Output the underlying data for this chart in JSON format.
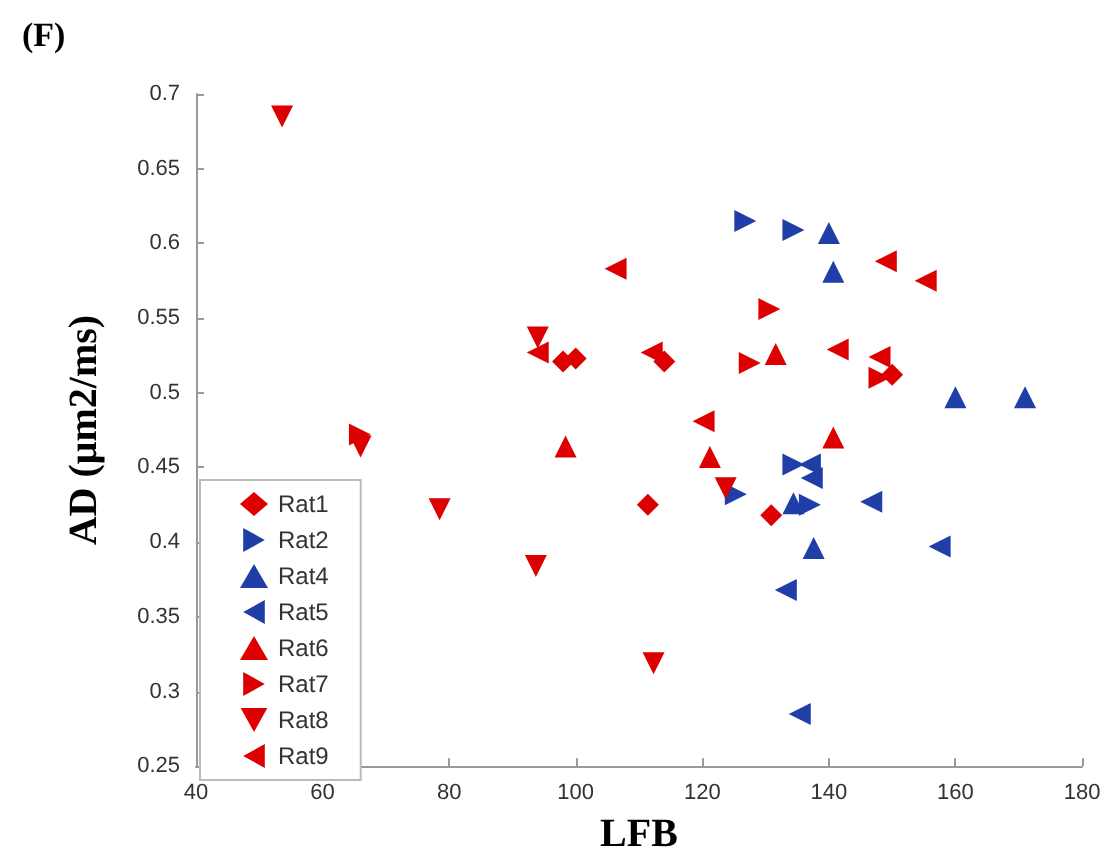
{
  "chart_data": {
    "type": "scatter",
    "title": "(F)",
    "xlabel": "LFB",
    "ylabel": "AD (μm2/ms)",
    "xlim": [
      40,
      180
    ],
    "xticks": [
      40,
      60,
      80,
      100,
      120,
      140,
      160,
      180
    ],
    "ylim": [
      0.25,
      0.7
    ],
    "yticks": [
      0.25,
      0.3,
      0.35,
      0.4,
      0.45,
      0.5,
      0.55,
      0.6,
      0.65,
      0.7
    ],
    "grid": false,
    "legend": "bottom left",
    "series": [
      {
        "name": "Rat1",
        "color": "#dd0000",
        "marker": "diamond",
        "x": [
          111.4,
          130.9,
          98,
          100,
          114,
          150
        ],
        "values": [
          0.425,
          0.418,
          0.521,
          0.523,
          0.521,
          0.512
        ]
      },
      {
        "name": "Rat2",
        "color": "#1f3ea8",
        "marker": "triangle-right",
        "x": [
          126.8,
          134.4,
          134.4,
          137,
          125.3
        ],
        "values": [
          0.615,
          0.609,
          0.452,
          0.425,
          0.432
        ]
      },
      {
        "name": "Rat4",
        "color": "#1f3ea8",
        "marker": "triangle",
        "x": [
          140,
          140.7,
          160,
          171,
          137.6,
          134.4
        ],
        "values": [
          0.607,
          0.581,
          0.497,
          0.497,
          0.396,
          0.426
        ]
      },
      {
        "name": "Rat5",
        "color": "#1f3ea8",
        "marker": "triangle-left",
        "x": [
          137,
          137.3,
          146.7,
          157.5,
          133.2,
          135.4,
          null
        ],
        "values": [
          0.452,
          0.443,
          0.427,
          0.397,
          0.368,
          0.285,
          null
        ]
      },
      {
        "name": "Rat6",
        "color": "#dd0000",
        "marker": "triangle",
        "x": [
          98.4,
          131.6,
          140.7,
          121.2
        ],
        "values": [
          0.464,
          0.526,
          0.47,
          0.457
        ]
      },
      {
        "name": "Rat7",
        "color": "#dd0000",
        "marker": "triangle-right",
        "x": [
          65.9,
          127.5,
          130.6,
          148
        ],
        "values": [
          0.472,
          0.52,
          0.556,
          0.51
        ]
      },
      {
        "name": "Rat8",
        "color": "#dd0000",
        "marker": "triangle-down",
        "x": [
          53.6,
          66,
          78.5,
          93.7,
          123.7,
          112.3,
          94
        ],
        "values": [
          0.685,
          0.464,
          0.422,
          0.384,
          0.436,
          0.319,
          0.537
        ]
      },
      {
        "name": "Rat9",
        "color": "#dd0000",
        "marker": "triangle-left",
        "x": [
          94,
          106.3,
          149,
          155.3,
          141.4,
          148,
          120.2,
          112
        ],
        "values": [
          0.527,
          0.583,
          0.588,
          0.575,
          0.529,
          0.524,
          0.481,
          0.527
        ]
      }
    ]
  }
}
